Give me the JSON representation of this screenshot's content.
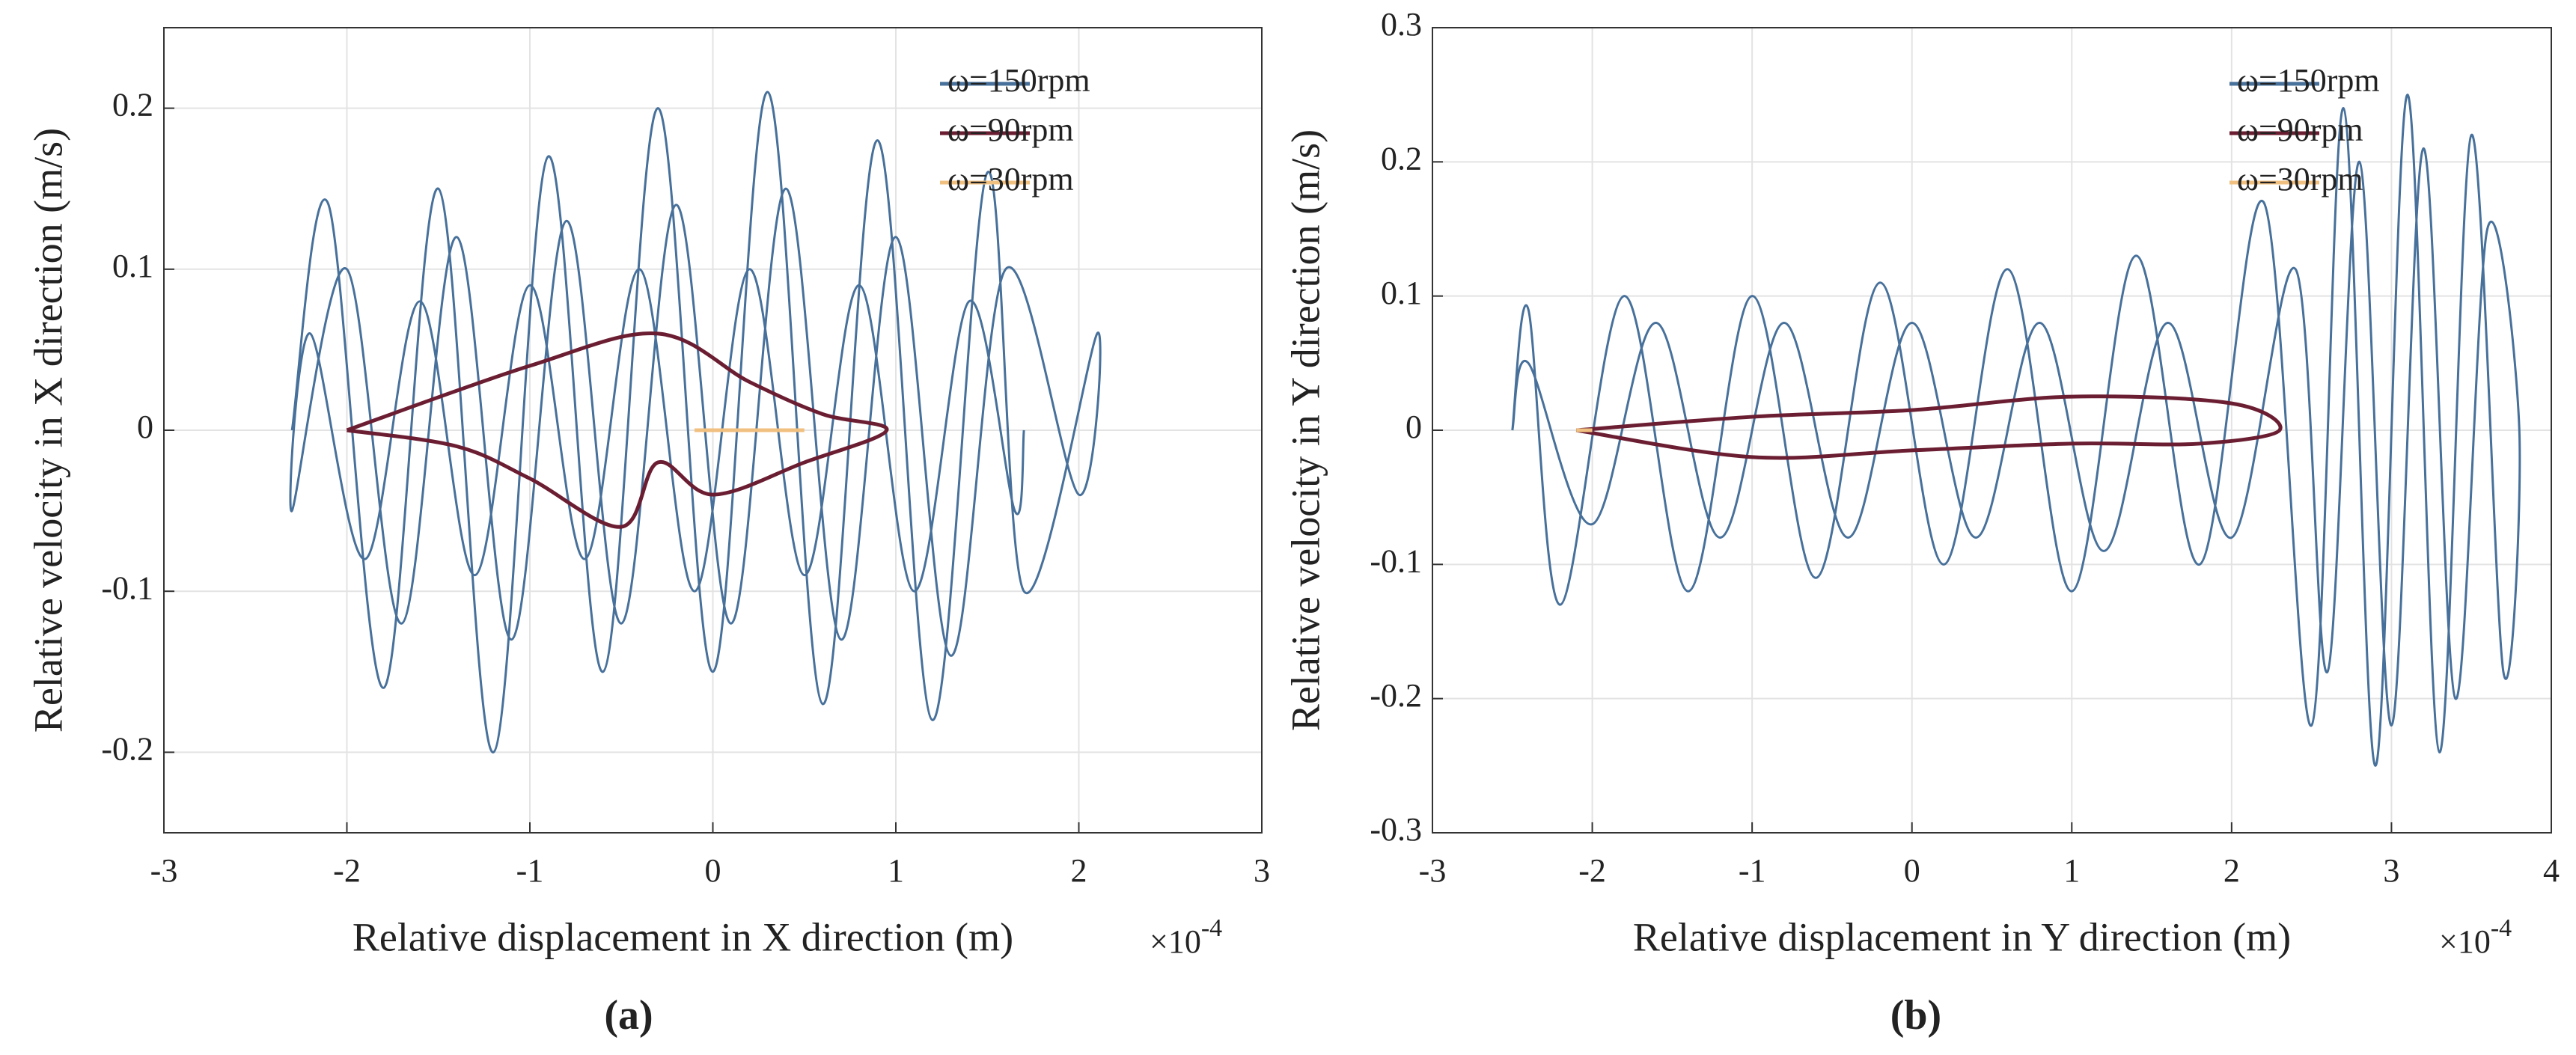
{
  "chart_data": [
    {
      "type": "line",
      "panel_label": "(a)",
      "xlabel": "Relative displacement in X direction (m)",
      "ylabel": "Relative velocity in X direction (m/s)",
      "x_multiplier": "×10",
      "x_exponent": "-4",
      "xlim": [
        -3,
        3
      ],
      "xticks": [
        -3,
        -2,
        -1,
        0,
        1,
        2,
        3
      ],
      "ylim": [
        -0.25,
        0.25
      ],
      "yticks": [
        -0.2,
        -0.1,
        0,
        0.1,
        0.2
      ],
      "grid": true,
      "legend": "upper right",
      "series": [
        {
          "name": "ω=150rpm",
          "color": "#47709a",
          "x": [
            -2.3,
            -2.1,
            -1.8,
            -1.5,
            -1.2,
            -0.9,
            -0.6,
            -0.3,
            0,
            0.3,
            0.6,
            0.9,
            1.2,
            1.5,
            1.7,
            2.1,
            2.0,
            1.6,
            1.3,
            1.0,
            0.7,
            0.4,
            0.1,
            -0.2,
            -0.5,
            -0.8,
            -1.1,
            -1.4,
            -1.7,
            -2.0,
            -2.3,
            -2.2,
            -1.9,
            -1.6,
            -1.3,
            -1.0,
            -0.7,
            -0.4,
            -0.1,
            0.2,
            0.5,
            0.8,
            1.1,
            1.4,
            1.65,
            1.7
          ],
          "values": [
            0,
            0.14,
            -0.16,
            0.15,
            -0.2,
            0.17,
            -0.15,
            0.2,
            -0.15,
            0.21,
            -0.17,
            0.18,
            -0.18,
            0.16,
            -0.1,
            0.06,
            -0.04,
            0.1,
            -0.14,
            0.12,
            -0.13,
            0.15,
            -0.12,
            0.14,
            -0.12,
            0.13,
            -0.13,
            0.12,
            -0.12,
            0.1,
            -0.05,
            0.06,
            -0.08,
            0.08,
            -0.09,
            0.09,
            -0.08,
            0.1,
            -0.1,
            0.1,
            -0.09,
            0.09,
            -0.1,
            0.08,
            -0.05,
            0
          ]
        },
        {
          "name": "ω=90rpm",
          "color": "#6b1e32",
          "x": [
            -2.0,
            -1.0,
            -0.3,
            0.2,
            0.6,
            0.95,
            0.5,
            0,
            -0.3,
            -0.5,
            -1.0,
            -1.4,
            -2.0
          ],
          "values": [
            0,
            0.04,
            0.06,
            0.03,
            0.01,
            0,
            -0.02,
            -0.04,
            -0.02,
            -0.06,
            -0.03,
            -0.01,
            0
          ]
        },
        {
          "name": "ω=30rpm",
          "color": "#f0c080",
          "x": [
            -0.1,
            0.5
          ],
          "values": [
            0,
            0
          ]
        }
      ]
    },
    {
      "type": "line",
      "panel_label": "(b)",
      "xlabel": "Relative displacement in Y direction (m)",
      "ylabel": "Relative velocity in Y direction (m/s)",
      "x_multiplier": "×10",
      "x_exponent": "-4",
      "xlim": [
        -3,
        4
      ],
      "xticks": [
        -3,
        -2,
        -1,
        0,
        1,
        2,
        3,
        4
      ],
      "ylim": [
        -0.3,
        0.3
      ],
      "yticks": [
        -0.3,
        -0.2,
        -0.1,
        0,
        0.1,
        0.2,
        0.3
      ],
      "grid": true,
      "legend": "upper right",
      "series": [
        {
          "name": "ω=150rpm",
          "color": "#47709a",
          "x": [
            -2.5,
            -2.4,
            -2.2,
            -1.8,
            -1.4,
            -1.0,
            -0.6,
            -0.2,
            0.2,
            0.6,
            1.0,
            1.4,
            1.8,
            2.2,
            2.5,
            2.7,
            2.9,
            3.1,
            3.3,
            3.5,
            3.7,
            3.8,
            3.6,
            3.4,
            3.2,
            3.0,
            2.8,
            2.6,
            2.4,
            2.0,
            1.6,
            1.2,
            0.8,
            0.4,
            0,
            -0.4,
            -0.8,
            -1.2,
            -1.6,
            -2.0,
            -2.4,
            -2.5
          ],
          "values": [
            0,
            0.09,
            -0.13,
            0.1,
            -0.12,
            0.1,
            -0.11,
            0.11,
            -0.1,
            0.12,
            -0.12,
            0.13,
            -0.1,
            0.17,
            -0.22,
            0.24,
            -0.25,
            0.25,
            -0.24,
            0.22,
            -0.18,
            0,
            0.15,
            -0.2,
            0.21,
            -0.22,
            0.2,
            -0.18,
            0.12,
            -0.08,
            0.08,
            -0.09,
            0.08,
            -0.08,
            0.08,
            -0.08,
            0.08,
            -0.08,
            0.08,
            -0.07,
            0.05,
            0
          ]
        },
        {
          "name": "ω=90rpm",
          "color": "#6b1e32",
          "x": [
            -2.1,
            -1.0,
            0,
            1.0,
            2.0,
            2.3,
            1.8,
            1.0,
            0,
            -1.0,
            -2.1
          ],
          "values": [
            0,
            0.01,
            0.015,
            0.025,
            0.02,
            0,
            -0.01,
            -0.01,
            -0.015,
            -0.02,
            0
          ]
        },
        {
          "name": "ω=30rpm",
          "color": "#f0c080",
          "x": [
            -2.1,
            -2.0
          ],
          "values": [
            0,
            0
          ]
        }
      ]
    }
  ]
}
